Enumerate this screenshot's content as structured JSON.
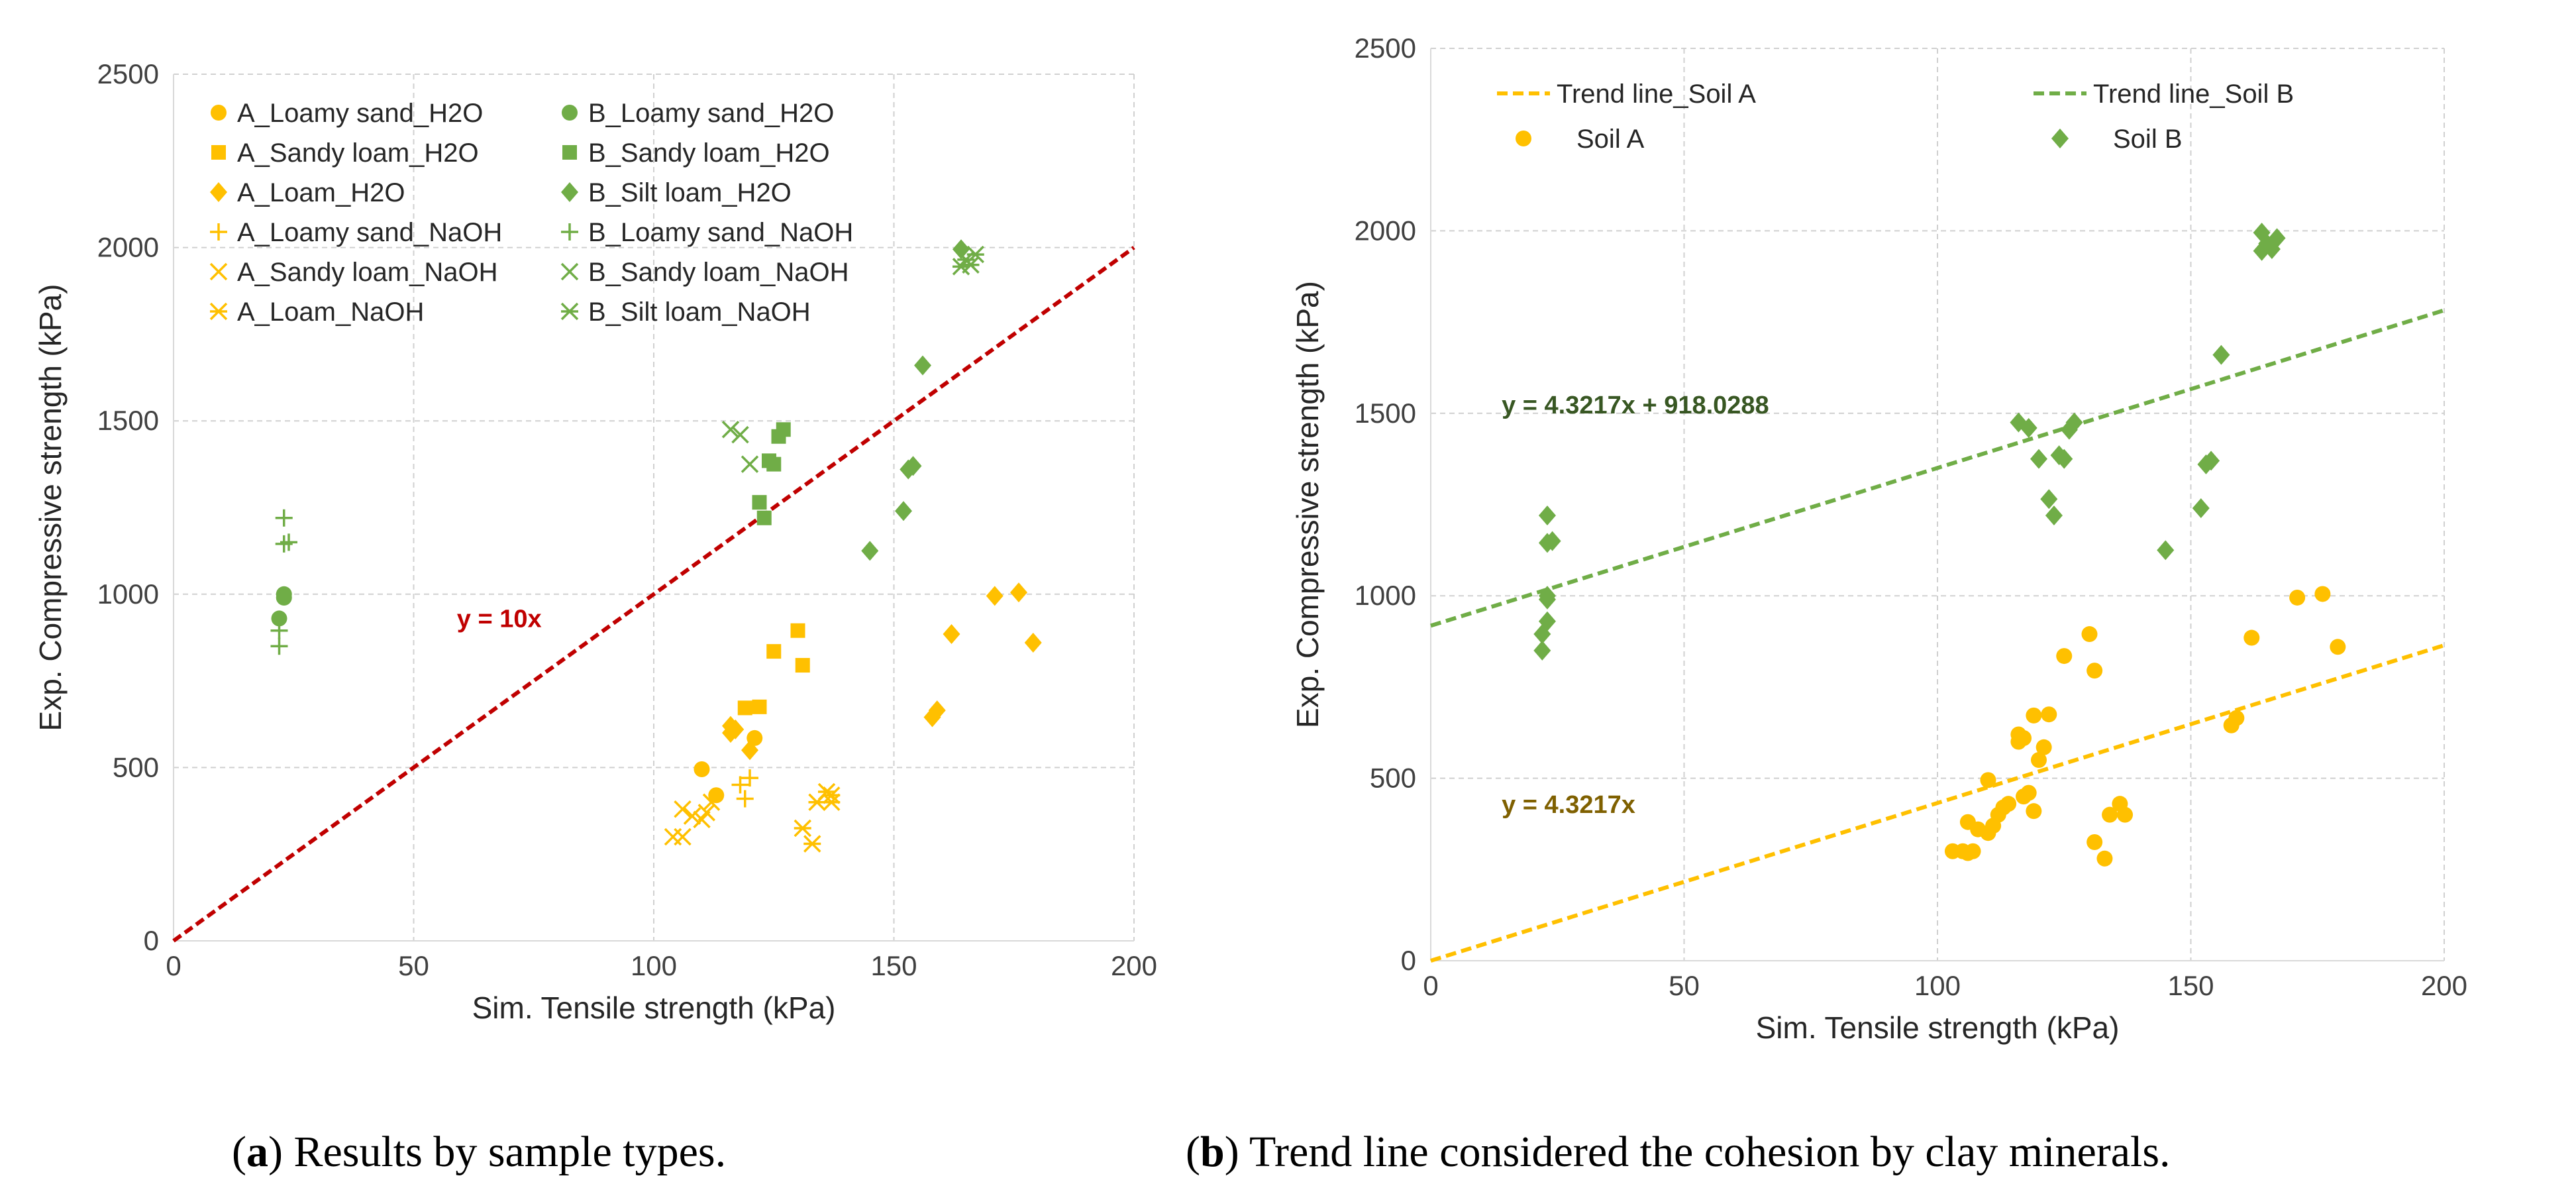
{
  "chart_data": [
    {
      "type": "scatter",
      "xlabel": "Sim. Tensile strength (kPa)",
      "ylabel": "Exp. Compressive strength (kPa)",
      "xlim": [
        0,
        200
      ],
      "ylim": [
        0,
        2500
      ],
      "xticks": [
        0,
        50,
        100,
        150,
        200
      ],
      "yticks": [
        0,
        500,
        1000,
        1500,
        2000,
        2500
      ],
      "grid": true,
      "legend_position": "top-left",
      "caption_label": "a",
      "caption_text": ") Results by sample types.",
      "reference_line": {
        "slope": 10,
        "intercept": 0,
        "label": "y = 10x",
        "label_at": [
          59,
          905
        ],
        "color": "#c00000"
      },
      "series": [
        {
          "name": "A_Loamy sand_H2O",
          "marker": "circle",
          "color": "#ffc000",
          "points": [
            [
              110,
              495
            ],
            [
              113,
              420
            ],
            [
              121,
              585
            ]
          ]
        },
        {
          "name": "A_Sandy loam_H2O",
          "marker": "square",
          "color": "#ffc000",
          "points": [
            [
              119,
              672
            ],
            [
              122,
              675
            ],
            [
              125,
              835
            ],
            [
              130,
              895
            ],
            [
              131,
              795
            ]
          ]
        },
        {
          "name": "A_Loam_H2O",
          "marker": "diamond",
          "color": "#ffc000",
          "points": [
            [
              116,
              620
            ],
            [
              116,
              600
            ],
            [
              117,
              610
            ],
            [
              120,
              550
            ],
            [
              158,
              645
            ],
            [
              159,
              665
            ],
            [
              162,
              885
            ],
            [
              171,
              995
            ],
            [
              176,
              1005
            ],
            [
              179,
              860
            ]
          ]
        },
        {
          "name": "A_Loamy sand_NaOH",
          "marker": "plus",
          "color": "#ffc000",
          "points": [
            [
              118,
              450
            ],
            [
              119,
              410
            ],
            [
              120,
              470
            ]
          ]
        },
        {
          "name": "A_Sandy loam_NaOH",
          "marker": "x",
          "color": "#ffc000",
          "points": [
            [
              104,
              300
            ],
            [
              106,
              300
            ],
            [
              106,
              380
            ],
            [
              108,
              360
            ],
            [
              110,
              350
            ],
            [
              111,
              370
            ],
            [
              112,
              400
            ]
          ]
        },
        {
          "name": "A_Loam_NaOH",
          "marker": "asterisk",
          "color": "#ffc000",
          "points": [
            [
              131,
              325
            ],
            [
              133,
              280
            ],
            [
              134,
              400
            ],
            [
              136,
              430
            ],
            [
              137,
              400
            ],
            [
              137,
              420
            ]
          ]
        },
        {
          "name": "B_Loamy sand_H2O",
          "marker": "circle",
          "color": "#70ad47",
          "points": [
            [
              22,
              930
            ],
            [
              23,
              1000
            ],
            [
              23,
              990
            ]
          ]
        },
        {
          "name": "B_Sandy loam_H2O",
          "marker": "square",
          "color": "#70ad47",
          "points": [
            [
              122,
              1265
            ],
            [
              123,
              1220
            ],
            [
              124,
              1385
            ],
            [
              125,
              1375
            ],
            [
              126,
              1455
            ],
            [
              127,
              1475
            ]
          ]
        },
        {
          "name": "B_Silt loam_H2O",
          "marker": "diamond",
          "color": "#70ad47",
          "points": [
            [
              145,
              1125
            ],
            [
              152,
              1240
            ],
            [
              153,
              1360
            ],
            [
              154,
              1370
            ],
            [
              156,
              1660
            ],
            [
              164,
              1995
            ]
          ]
        },
        {
          "name": "B_Loamy sand_NaOH",
          "marker": "plus",
          "color": "#70ad47",
          "points": [
            [
              22,
              850
            ],
            [
              22,
              895
            ],
            [
              23,
              1145
            ],
            [
              24,
              1150
            ],
            [
              23,
              1220
            ]
          ]
        },
        {
          "name": "B_Sandy loam_NaOH",
          "marker": "x",
          "color": "#70ad47",
          "points": [
            [
              116,
              1475
            ],
            [
              118,
              1460
            ],
            [
              120,
              1375
            ]
          ]
        },
        {
          "name": "B_Silt loam_NaOH",
          "marker": "asterisk",
          "color": "#70ad47",
          "points": [
            [
              164,
              1945
            ],
            [
              165,
              1965
            ],
            [
              166,
              1950
            ],
            [
              167,
              1980
            ]
          ]
        }
      ]
    },
    {
      "type": "scatter",
      "xlabel": "Sim. Tensile strength (kPa)",
      "ylabel": "Exp. Compressive strength (kPa)",
      "xlim": [
        0,
        200
      ],
      "ylim": [
        0,
        2500
      ],
      "xticks": [
        0,
        50,
        100,
        150,
        200
      ],
      "yticks": [
        0,
        500,
        1000,
        1500,
        2000,
        2500
      ],
      "grid": true,
      "legend_position": "top",
      "caption_label": "b",
      "caption_text": ") Trend line considered the cohesion by clay minerals.",
      "trend_lines": [
        {
          "name": "Trend line_Soil A",
          "slope": 4.3217,
          "intercept": 0,
          "color": "#ffc000",
          "equation": "y = 4.3217x",
          "label_color": "#7f6000",
          "label_at": [
            14,
            405
          ]
        },
        {
          "name": "Trend line_Soil B",
          "slope": 4.3217,
          "intercept": 918.0288,
          "color": "#70ad47",
          "equation": "y = 4.3217x + 918.0288",
          "label_color": "#385723",
          "label_at": [
            14,
            1500
          ]
        }
      ],
      "series": [
        {
          "name": "Soil A",
          "marker": "circle",
          "color": "#ffc000",
          "points": [
            [
              103,
              300
            ],
            [
              105,
              300
            ],
            [
              106,
              295
            ],
            [
              106,
              380
            ],
            [
              107,
              300
            ],
            [
              108,
              360
            ],
            [
              110,
              350
            ],
            [
              111,
              370
            ],
            [
              110,
              495
            ],
            [
              112,
              400
            ],
            [
              113,
              420
            ],
            [
              114,
              430
            ],
            [
              116,
              620
            ],
            [
              116,
              600
            ],
            [
              117,
              610
            ],
            [
              117,
              450
            ],
            [
              118,
              460
            ],
            [
              119,
              410
            ],
            [
              119,
              672
            ],
            [
              120,
              550
            ],
            [
              121,
              585
            ],
            [
              122,
              675
            ],
            [
              125,
              835
            ],
            [
              130,
              895
            ],
            [
              131,
              795
            ],
            [
              131,
              325
            ],
            [
              133,
              280
            ],
            [
              134,
              400
            ],
            [
              136,
              430
            ],
            [
              137,
              400
            ],
            [
              158,
              645
            ],
            [
              159,
              665
            ],
            [
              162,
              885
            ],
            [
              171,
              995
            ],
            [
              176,
              1005
            ],
            [
              179,
              860
            ]
          ]
        },
        {
          "name": "Soil B",
          "marker": "diamond",
          "color": "#70ad47",
          "points": [
            [
              22,
              850
            ],
            [
              22,
              895
            ],
            [
              23,
              930
            ],
            [
              23,
              1000
            ],
            [
              23,
              990
            ],
            [
              23,
              1145
            ],
            [
              24,
              1150
            ],
            [
              23,
              1220
            ],
            [
              116,
              1475
            ],
            [
              118,
              1460
            ],
            [
              120,
              1375
            ],
            [
              122,
              1265
            ],
            [
              123,
              1220
            ],
            [
              124,
              1385
            ],
            [
              125,
              1375
            ],
            [
              126,
              1455
            ],
            [
              127,
              1475
            ],
            [
              145,
              1125
            ],
            [
              152,
              1240
            ],
            [
              153,
              1360
            ],
            [
              154,
              1370
            ],
            [
              156,
              1660
            ],
            [
              164,
              1995
            ],
            [
              164,
              1945
            ],
            [
              165,
              1965
            ],
            [
              166,
              1950
            ],
            [
              167,
              1980
            ]
          ]
        }
      ]
    }
  ]
}
